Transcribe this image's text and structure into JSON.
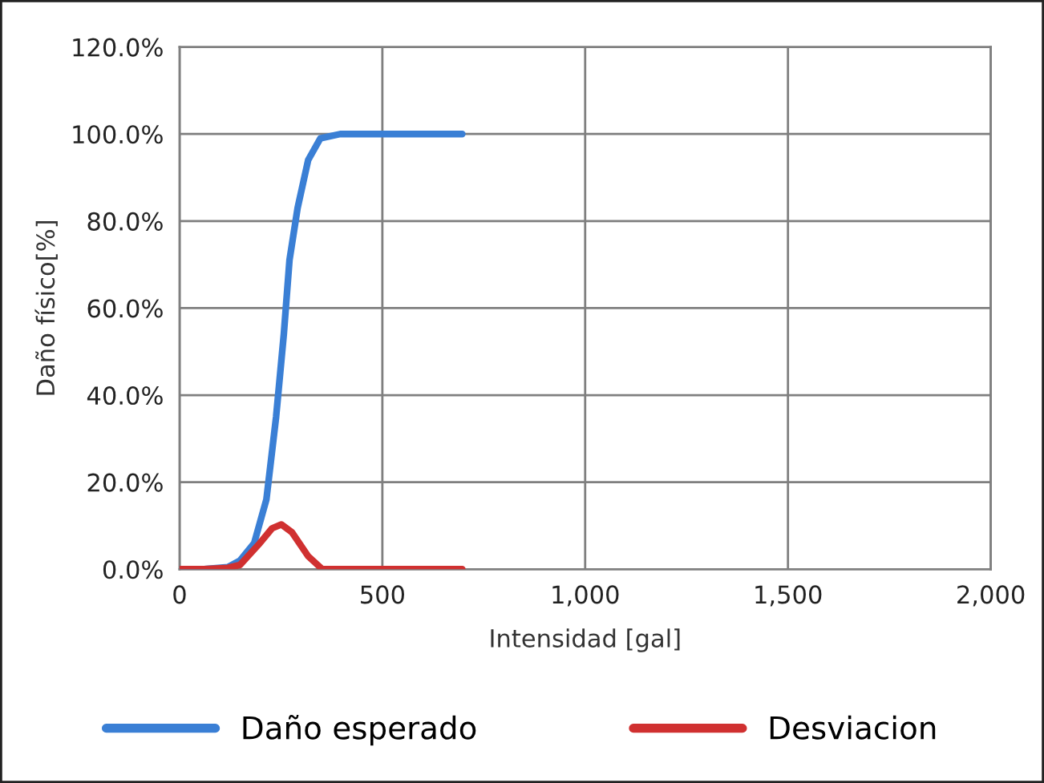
{
  "chart_data": {
    "type": "line",
    "xlabel": "Intensidad [gal]",
    "ylabel": "Daño físico[%]",
    "xlim": [
      0,
      2000
    ],
    "xticks": [
      0,
      500,
      {
        "value": 1000,
        "label": "1,000"
      },
      {
        "value": 1500,
        "label": "1,500"
      },
      {
        "value": 2000,
        "label": "2,000"
      }
    ],
    "ylim": [
      0,
      120
    ],
    "yticks": [
      {
        "value": 0,
        "label": "0.0%"
      },
      {
        "value": 20,
        "label": "20.0%"
      },
      {
        "value": 40,
        "label": "40.0%"
      },
      {
        "value": 60,
        "label": "60.0%"
      },
      {
        "value": 80,
        "label": "80.0%"
      },
      {
        "value": 100,
        "label": "100.0%"
      },
      {
        "value": 120,
        "label": "120.0%"
      }
    ],
    "grid": true,
    "legend": "bottom",
    "marker": "none",
    "line_style": "solid",
    "series": [
      {
        "name": "Daño esperado",
        "color": "#3a7fd5",
        "x": [
          0,
          60,
          119,
          149,
          184,
          214,
          238,
          257,
          271,
          291,
          317,
          347,
          396,
          697
        ],
        "values": [
          0,
          0,
          0.5,
          2,
          6,
          16,
          35,
          54,
          71,
          83,
          94,
          99,
          100,
          100
        ]
      },
      {
        "name": "Desviacion",
        "color": "#d03030",
        "x": [
          0,
          60,
          119,
          149,
          198,
          228,
          251,
          277,
          317,
          352,
          400,
          697
        ],
        "values": [
          0,
          0,
          0.3,
          1,
          6,
          9.4,
          10.3,
          8.5,
          3,
          0,
          0,
          0
        ]
      }
    ]
  }
}
